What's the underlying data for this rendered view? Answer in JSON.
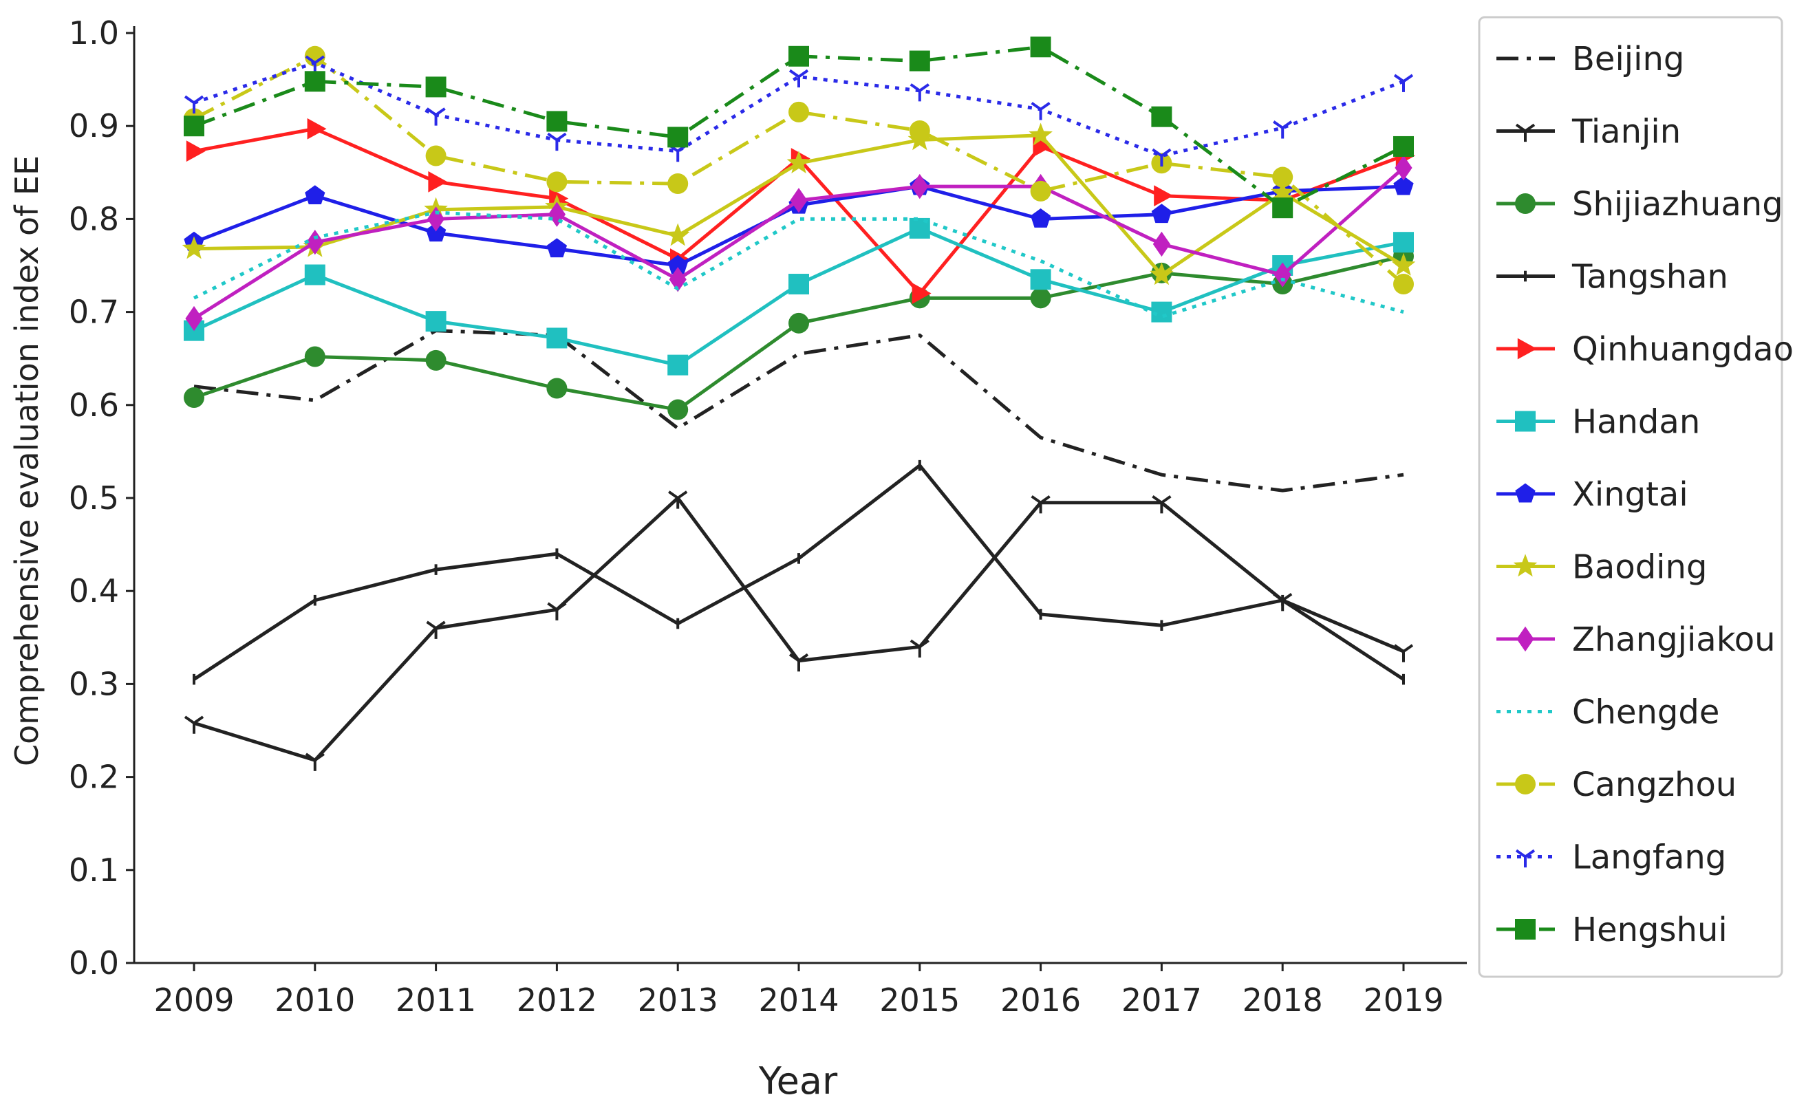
{
  "chart_data": {
    "type": "line",
    "title": "",
    "xlabel": "Year",
    "ylabel": "Comprehensive evaluation index of EE",
    "x": [
      2009,
      2010,
      2011,
      2012,
      2013,
      2014,
      2015,
      2016,
      2017,
      2018,
      2019
    ],
    "xticks": [
      "2009",
      "2010",
      "2011",
      "2012",
      "2013",
      "2014",
      "2015",
      "2016",
      "2017",
      "2018",
      "2019"
    ],
    "yticks": [
      "0.0",
      "0.1",
      "0.2",
      "0.3",
      "0.4",
      "0.5",
      "0.6",
      "0.7",
      "0.8",
      "0.9",
      "1.0"
    ],
    "ylim": [
      0,
      1.0
    ],
    "grid": false,
    "legend_position": "right-outside",
    "series": [
      {
        "name": "Beijing",
        "color": "#222222",
        "dash": "dashdot",
        "marker": "none",
        "values": [
          0.62,
          0.605,
          0.68,
          0.675,
          0.575,
          0.655,
          0.675,
          0.565,
          0.525,
          0.508,
          0.525
        ]
      },
      {
        "name": "Tianjin",
        "color": "#222222",
        "dash": "solid",
        "marker": "tri_down",
        "values": [
          0.258,
          0.218,
          0.36,
          0.38,
          0.5,
          0.325,
          0.34,
          0.495,
          0.495,
          0.39,
          0.335
        ]
      },
      {
        "name": "Shijiazhuang",
        "color": "#2e8b2e",
        "dash": "solid",
        "marker": "circle",
        "values": [
          0.608,
          0.652,
          0.648,
          0.618,
          0.595,
          0.688,
          0.715,
          0.715,
          0.742,
          0.73,
          0.76
        ]
      },
      {
        "name": "Tangshan",
        "color": "#222222",
        "dash": "solid",
        "marker": "tick",
        "values": [
          0.305,
          0.39,
          0.423,
          0.44,
          0.365,
          0.435,
          0.535,
          0.375,
          0.363,
          0.39,
          0.305
        ]
      },
      {
        "name": "Qinhuangdao",
        "color": "#ff2020",
        "dash": "solid",
        "marker": "tri_right",
        "values": [
          0.873,
          0.897,
          0.84,
          0.822,
          0.757,
          0.865,
          0.72,
          0.878,
          0.825,
          0.82,
          0.868
        ]
      },
      {
        "name": "Handan",
        "color": "#20c0c0",
        "dash": "solid",
        "marker": "square",
        "values": [
          0.68,
          0.74,
          0.69,
          0.672,
          0.643,
          0.73,
          0.79,
          0.735,
          0.7,
          0.75,
          0.775
        ]
      },
      {
        "name": "Xingtai",
        "color": "#1f1fe8",
        "dash": "solid",
        "marker": "pentagon",
        "values": [
          0.775,
          0.825,
          0.785,
          0.768,
          0.75,
          0.815,
          0.835,
          0.8,
          0.805,
          0.83,
          0.835
        ]
      },
      {
        "name": "Baoding",
        "color": "#c8c818",
        "dash": "solid",
        "marker": "star",
        "values": [
          0.768,
          0.77,
          0.81,
          0.813,
          0.782,
          0.86,
          0.885,
          0.89,
          0.74,
          0.828,
          0.75
        ]
      },
      {
        "name": "Zhangjiakou",
        "color": "#c020c0",
        "dash": "solid",
        "marker": "diamond",
        "values": [
          0.693,
          0.775,
          0.8,
          0.805,
          0.735,
          0.82,
          0.835,
          0.835,
          0.773,
          0.74,
          0.855
        ]
      },
      {
        "name": "Chengde",
        "color": "#20c8c8",
        "dash": "dotted",
        "marker": "none",
        "values": [
          0.715,
          0.78,
          0.807,
          0.8,
          0.725,
          0.8,
          0.8,
          0.755,
          0.695,
          0.735,
          0.7
        ]
      },
      {
        "name": "Cangzhou",
        "color": "#c8c818",
        "dash": "dashdot",
        "marker": "circle",
        "values": [
          0.908,
          0.975,
          0.868,
          0.84,
          0.838,
          0.915,
          0.895,
          0.83,
          0.86,
          0.845,
          0.73
        ]
      },
      {
        "name": "Langfang",
        "color": "#2a2ae8",
        "dash": "dotted",
        "marker": "tri_down",
        "values": [
          0.925,
          0.968,
          0.912,
          0.885,
          0.873,
          0.953,
          0.938,
          0.918,
          0.868,
          0.898,
          0.948
        ]
      },
      {
        "name": "Hengshui",
        "color": "#1a8a1a",
        "dash": "dashdot",
        "marker": "square",
        "values": [
          0.9,
          0.948,
          0.942,
          0.905,
          0.888,
          0.975,
          0.97,
          0.985,
          0.91,
          0.812,
          0.878
        ]
      }
    ]
  }
}
